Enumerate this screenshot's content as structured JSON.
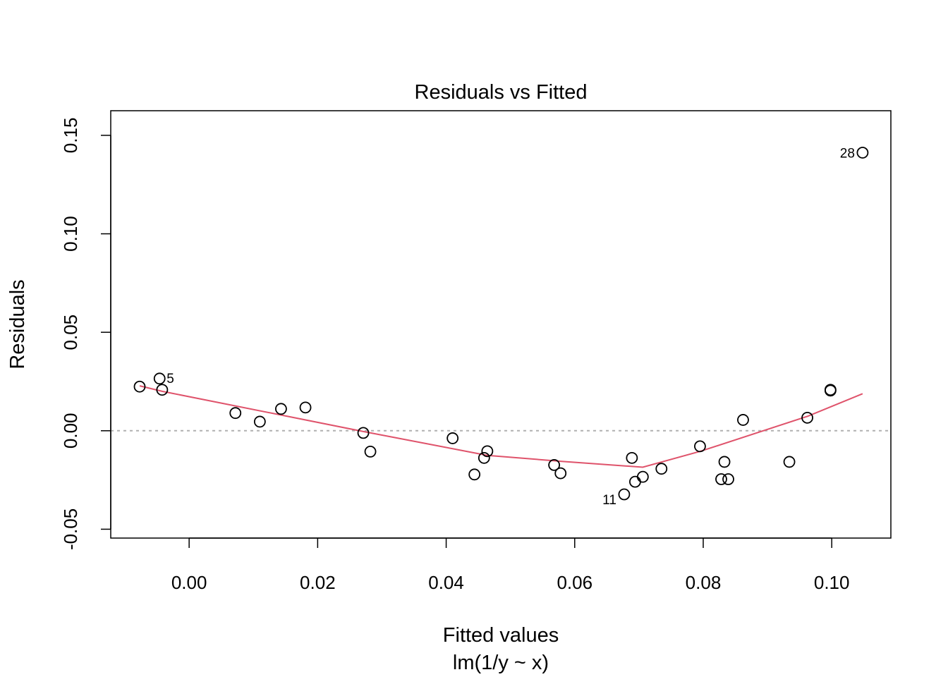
{
  "chart_data": {
    "type": "scatter",
    "title": "Residuals vs Fitted",
    "xlabel": "Fitted values",
    "subtitle": "lm(1/y ~ x)",
    "ylabel": "Residuals",
    "xlim": [
      -0.0122,
      0.1092
    ],
    "ylim": [
      -0.0545,
      0.1625
    ],
    "x_ticks": [
      0.0,
      0.02,
      0.04,
      0.06,
      0.08,
      0.1
    ],
    "x_tick_labels": [
      "0.00",
      "0.02",
      "0.04",
      "0.06",
      "0.08",
      "0.10"
    ],
    "y_ticks": [
      -0.05,
      0.0,
      0.05,
      0.1,
      0.15
    ],
    "y_tick_labels": [
      "-0.05",
      "0.00",
      "0.05",
      "0.10",
      "0.15"
    ],
    "reference_line": 0.0,
    "points": [
      {
        "x": -0.0077,
        "y": 0.0224
      },
      {
        "x": -0.0046,
        "y": 0.0265,
        "label": "5"
      },
      {
        "x": -0.0042,
        "y": 0.0208
      },
      {
        "x": 0.0072,
        "y": 0.009
      },
      {
        "x": 0.011,
        "y": 0.0046
      },
      {
        "x": 0.0143,
        "y": 0.0111
      },
      {
        "x": 0.0181,
        "y": 0.0118
      },
      {
        "x": 0.0271,
        "y": -0.0011
      },
      {
        "x": 0.0282,
        "y": -0.0106
      },
      {
        "x": 0.041,
        "y": -0.0038
      },
      {
        "x": 0.0444,
        "y": -0.0222
      },
      {
        "x": 0.0459,
        "y": -0.0138
      },
      {
        "x": 0.0464,
        "y": -0.0104
      },
      {
        "x": 0.0568,
        "y": -0.0174
      },
      {
        "x": 0.0578,
        "y": -0.0216
      },
      {
        "x": 0.0677,
        "y": -0.0323,
        "label": "11"
      },
      {
        "x": 0.0689,
        "y": -0.0138
      },
      {
        "x": 0.0694,
        "y": -0.0259
      },
      {
        "x": 0.0706,
        "y": -0.0234
      },
      {
        "x": 0.0735,
        "y": -0.0193
      },
      {
        "x": 0.0795,
        "y": -0.0079
      },
      {
        "x": 0.0828,
        "y": -0.0246
      },
      {
        "x": 0.0833,
        "y": -0.0158
      },
      {
        "x": 0.0839,
        "y": -0.0246
      },
      {
        "x": 0.0862,
        "y": 0.0055
      },
      {
        "x": 0.0934,
        "y": -0.0158
      },
      {
        "x": 0.0962,
        "y": 0.0066
      },
      {
        "x": 0.0998,
        "y": 0.0204
      },
      {
        "x": 0.0998,
        "y": 0.0208
      },
      {
        "x": 0.1048,
        "y": 0.1412,
        "label": "28"
      }
    ],
    "smooth_line": {
      "color": "#DF536B",
      "x": [
        -0.0077,
        -0.0042,
        0.0143,
        0.0271,
        0.0464,
        0.0578,
        0.0706,
        0.0795,
        0.0962,
        0.1048
      ],
      "y": [
        0.0228,
        0.02,
        0.008,
        -0.0004,
        -0.0125,
        -0.0155,
        -0.0185,
        -0.0105,
        0.0073,
        0.0188
      ]
    },
    "grid": false
  }
}
